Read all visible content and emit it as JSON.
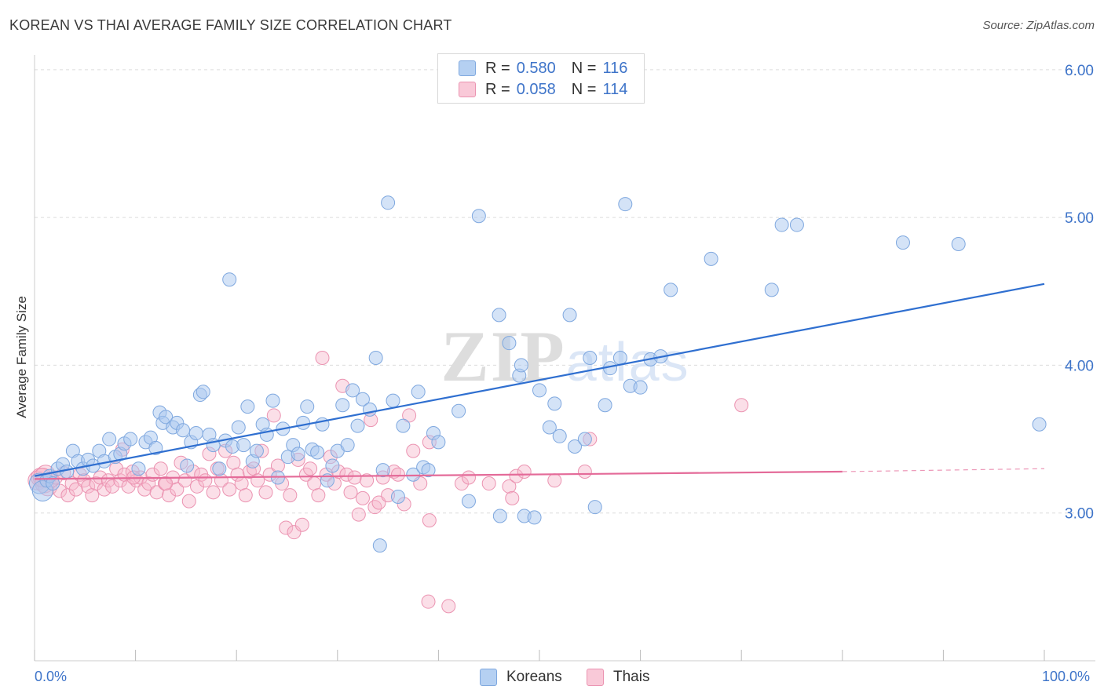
{
  "title": "KOREAN VS THAI AVERAGE FAMILY SIZE CORRELATION CHART",
  "source": "Source: ZipAtlas.com",
  "watermark": "ZIPatlas",
  "legend": {
    "korean": {
      "r_label": "R =",
      "r_value": "0.580",
      "n_label": "N =",
      "n_value": "116"
    },
    "thai": {
      "r_label": "R =",
      "r_value": "0.058",
      "n_label": "N =",
      "n_value": "114"
    }
  },
  "bottom_legend": {
    "korean": "Koreans",
    "thai": "Thais"
  },
  "colors": {
    "korean_fill": "#a9c8f0",
    "korean_stroke": "#7fa8df",
    "korean_line": "#2f6fd0",
    "thai_fill": "#f6b8cb",
    "thai_stroke": "#eb93b1",
    "thai_line": "#e46b99",
    "tick_text": "#3e74c9",
    "grid": "#dcdcdc"
  },
  "chart_data": {
    "type": "scatter",
    "title": "KOREAN VS THAI AVERAGE FAMILY SIZE CORRELATION CHART",
    "xlabel": "",
    "ylabel": "Average Family Size",
    "xlim": [
      0,
      100
    ],
    "ylim": [
      2.0,
      6.1
    ],
    "x_tick_labels": [
      "0.0%",
      "100.0%"
    ],
    "y_ticks": [
      3.0,
      4.0,
      5.0,
      6.0
    ],
    "y_tick_labels": [
      "3.00",
      "4.00",
      "5.00",
      "6.00"
    ],
    "grid": true,
    "legend_position": "top-center",
    "series": [
      {
        "name": "Koreans",
        "r": 0.58,
        "n": 116,
        "trend": {
          "x0": 0,
          "y0": 3.25,
          "x1": 100,
          "y1": 4.55
        },
        "points": [
          [
            0.5,
            3.2
          ],
          [
            0.8,
            3.15
          ],
          [
            1.2,
            3.22
          ],
          [
            1.5,
            3.25
          ],
          [
            1.8,
            3.2
          ],
          [
            2.3,
            3.3
          ],
          [
            2.8,
            3.33
          ],
          [
            3.2,
            3.28
          ],
          [
            3.8,
            3.42
          ],
          [
            4.3,
            3.35
          ],
          [
            4.8,
            3.3
          ],
          [
            5.3,
            3.36
          ],
          [
            5.8,
            3.32
          ],
          [
            6.4,
            3.42
          ],
          [
            6.9,
            3.35
          ],
          [
            7.4,
            3.5
          ],
          [
            8.0,
            3.38
          ],
          [
            8.5,
            3.4
          ],
          [
            8.9,
            3.47
          ],
          [
            9.5,
            3.5
          ],
          [
            10.3,
            3.3
          ],
          [
            11.0,
            3.48
          ],
          [
            11.5,
            3.51
          ],
          [
            12.0,
            3.44
          ],
          [
            12.4,
            3.68
          ],
          [
            12.7,
            3.61
          ],
          [
            13.0,
            3.65
          ],
          [
            13.7,
            3.58
          ],
          [
            14.1,
            3.61
          ],
          [
            14.7,
            3.56
          ],
          [
            15.1,
            3.32
          ],
          [
            15.5,
            3.48
          ],
          [
            16.0,
            3.54
          ],
          [
            16.4,
            3.8
          ],
          [
            16.7,
            3.82
          ],
          [
            17.3,
            3.53
          ],
          [
            17.7,
            3.46
          ],
          [
            18.3,
            3.3
          ],
          [
            18.9,
            3.49
          ],
          [
            19.3,
            4.58
          ],
          [
            19.6,
            3.45
          ],
          [
            20.2,
            3.58
          ],
          [
            20.7,
            3.46
          ],
          [
            21.1,
            3.72
          ],
          [
            21.6,
            3.35
          ],
          [
            22.0,
            3.42
          ],
          [
            22.6,
            3.6
          ],
          [
            23.0,
            3.53
          ],
          [
            23.6,
            3.76
          ],
          [
            24.1,
            3.24
          ],
          [
            24.6,
            3.57
          ],
          [
            25.1,
            3.38
          ],
          [
            25.6,
            3.46
          ],
          [
            26.1,
            3.4
          ],
          [
            26.6,
            3.61
          ],
          [
            27.0,
            3.72
          ],
          [
            27.5,
            3.43
          ],
          [
            28.0,
            3.41
          ],
          [
            28.5,
            3.6
          ],
          [
            29.0,
            3.22
          ],
          [
            29.5,
            3.32
          ],
          [
            30.0,
            3.42
          ],
          [
            30.5,
            3.73
          ],
          [
            31.0,
            3.46
          ],
          [
            31.5,
            3.83
          ],
          [
            32.0,
            3.59
          ],
          [
            32.5,
            3.77
          ],
          [
            33.2,
            3.7
          ],
          [
            33.8,
            4.05
          ],
          [
            34.2,
            2.78
          ],
          [
            34.5,
            3.29
          ],
          [
            35.0,
            5.1
          ],
          [
            35.5,
            3.76
          ],
          [
            36.0,
            3.11
          ],
          [
            36.5,
            3.59
          ],
          [
            37.5,
            3.26
          ],
          [
            38.0,
            3.82
          ],
          [
            38.5,
            3.31
          ],
          [
            39.0,
            3.29
          ],
          [
            39.5,
            3.54
          ],
          [
            40.0,
            3.48
          ],
          [
            42.0,
            3.69
          ],
          [
            43.0,
            3.08
          ],
          [
            44.0,
            5.01
          ],
          [
            46.0,
            4.34
          ],
          [
            46.1,
            2.98
          ],
          [
            47.0,
            4.15
          ],
          [
            48.0,
            3.93
          ],
          [
            48.2,
            4.0
          ],
          [
            48.5,
            2.98
          ],
          [
            49.5,
            2.97
          ],
          [
            50.0,
            3.83
          ],
          [
            51.0,
            3.58
          ],
          [
            51.5,
            3.74
          ],
          [
            52.0,
            3.52
          ],
          [
            53.0,
            4.34
          ],
          [
            53.5,
            3.45
          ],
          [
            54.5,
            3.5
          ],
          [
            55.0,
            4.05
          ],
          [
            55.5,
            3.04
          ],
          [
            56.5,
            3.73
          ],
          [
            57.0,
            3.98
          ],
          [
            58.0,
            4.05
          ],
          [
            58.5,
            5.09
          ],
          [
            59.0,
            3.86
          ],
          [
            61.0,
            4.04
          ],
          [
            62.0,
            4.06
          ],
          [
            63.0,
            4.51
          ],
          [
            67.0,
            4.72
          ],
          [
            73.0,
            4.51
          ],
          [
            74.0,
            4.95
          ],
          [
            75.5,
            4.95
          ],
          [
            86.0,
            4.83
          ],
          [
            91.5,
            4.82
          ],
          [
            99.5,
            3.6
          ],
          [
            60.0,
            3.85
          ]
        ]
      },
      {
        "name": "Thais",
        "r": 0.058,
        "n": 114,
        "trend": {
          "x0": 0,
          "y0": 3.23,
          "x1": 80,
          "y1": 3.28,
          "x2": 100,
          "y2": 3.3
        },
        "points": [
          [
            0.3,
            3.22
          ],
          [
            0.6,
            3.24
          ],
          [
            1.0,
            3.2
          ],
          [
            1.3,
            3.18
          ],
          [
            1.7,
            3.22
          ],
          [
            2.1,
            3.24
          ],
          [
            2.5,
            3.15
          ],
          [
            2.9,
            3.27
          ],
          [
            3.3,
            3.12
          ],
          [
            3.7,
            3.2
          ],
          [
            4.1,
            3.16
          ],
          [
            4.5,
            3.26
          ],
          [
            4.9,
            3.22
          ],
          [
            5.3,
            3.18
          ],
          [
            5.7,
            3.12
          ],
          [
            6.1,
            3.2
          ],
          [
            6.5,
            3.24
          ],
          [
            6.9,
            3.16
          ],
          [
            7.3,
            3.22
          ],
          [
            7.7,
            3.18
          ],
          [
            8.1,
            3.3
          ],
          [
            8.5,
            3.22
          ],
          [
            8.9,
            3.26
          ],
          [
            9.3,
            3.18
          ],
          [
            9.7,
            3.28
          ],
          [
            10.1,
            3.22
          ],
          [
            10.5,
            3.24
          ],
          [
            10.9,
            3.16
          ],
          [
            11.3,
            3.2
          ],
          [
            11.7,
            3.26
          ],
          [
            12.1,
            3.14
          ],
          [
            12.5,
            3.3
          ],
          [
            12.9,
            3.2
          ],
          [
            13.3,
            3.12
          ],
          [
            13.7,
            3.24
          ],
          [
            14.1,
            3.16
          ],
          [
            14.5,
            3.34
          ],
          [
            14.9,
            3.22
          ],
          [
            15.3,
            3.08
          ],
          [
            15.7,
            3.28
          ],
          [
            16.1,
            3.18
          ],
          [
            16.5,
            3.26
          ],
          [
            16.9,
            3.22
          ],
          [
            17.3,
            3.4
          ],
          [
            17.7,
            3.14
          ],
          [
            18.1,
            3.3
          ],
          [
            18.5,
            3.22
          ],
          [
            18.9,
            3.42
          ],
          [
            19.3,
            3.16
          ],
          [
            19.7,
            3.34
          ],
          [
            20.1,
            3.26
          ],
          [
            20.5,
            3.2
          ],
          [
            20.9,
            3.12
          ],
          [
            21.3,
            3.28
          ],
          [
            21.7,
            3.3
          ],
          [
            22.1,
            3.22
          ],
          [
            22.5,
            3.42
          ],
          [
            22.9,
            3.14
          ],
          [
            23.3,
            3.26
          ],
          [
            23.7,
            3.66
          ],
          [
            24.1,
            3.32
          ],
          [
            24.5,
            3.2
          ],
          [
            24.9,
            2.9
          ],
          [
            25.3,
            3.12
          ],
          [
            25.7,
            2.87
          ],
          [
            26.1,
            3.36
          ],
          [
            26.5,
            2.92
          ],
          [
            26.9,
            3.26
          ],
          [
            27.3,
            3.3
          ],
          [
            27.7,
            3.2
          ],
          [
            28.1,
            3.12
          ],
          [
            28.5,
            4.05
          ],
          [
            28.9,
            3.26
          ],
          [
            29.3,
            3.38
          ],
          [
            29.7,
            3.2
          ],
          [
            30.1,
            3.28
          ],
          [
            30.5,
            3.86
          ],
          [
            30.9,
            3.26
          ],
          [
            31.3,
            3.14
          ],
          [
            31.7,
            3.24
          ],
          [
            32.1,
            2.99
          ],
          [
            32.5,
            3.1
          ],
          [
            32.9,
            3.22
          ],
          [
            33.3,
            3.63
          ],
          [
            33.7,
            3.04
          ],
          [
            34.1,
            3.07
          ],
          [
            34.5,
            3.24
          ],
          [
            35.0,
            3.12
          ],
          [
            35.6,
            3.28
          ],
          [
            36.0,
            3.26
          ],
          [
            36.6,
            3.06
          ],
          [
            37.1,
            3.66
          ],
          [
            37.5,
            3.42
          ],
          [
            38.2,
            3.2
          ],
          [
            39.0,
            2.4
          ],
          [
            39.1,
            3.48
          ],
          [
            39.1,
            2.95
          ],
          [
            41.0,
            2.37
          ],
          [
            42.3,
            3.2
          ],
          [
            43.0,
            3.24
          ],
          [
            45.0,
            3.2
          ],
          [
            47.0,
            3.18
          ],
          [
            47.3,
            3.1
          ],
          [
            47.7,
            3.25
          ],
          [
            48.5,
            3.28
          ],
          [
            51.5,
            3.22
          ],
          [
            54.5,
            3.28
          ],
          [
            55.0,
            3.5
          ],
          [
            70.0,
            3.73
          ],
          [
            8.7,
            3.43
          ],
          [
            9.8,
            3.24
          ],
          [
            13.0,
            3.2
          ],
          [
            1.1,
            3.26
          ],
          [
            0.8,
            3.24
          ]
        ]
      }
    ]
  }
}
